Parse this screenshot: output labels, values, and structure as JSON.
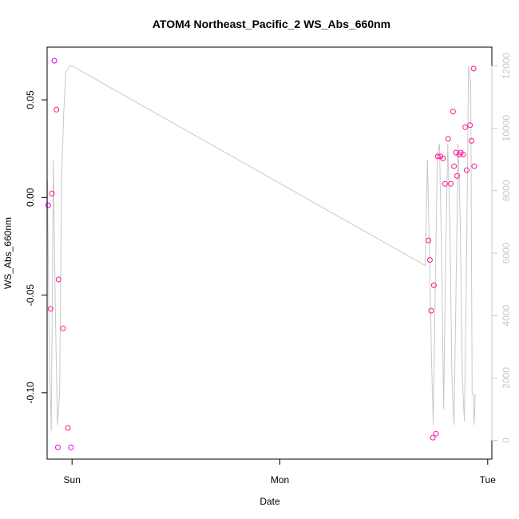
{
  "chart_data": {
    "type": "scatter",
    "title": "ATOM4 Northeast_Pacific_2 WS_Abs_660nm",
    "xlabel": "Date",
    "ylabel": "WS_Abs_660nm",
    "x_ticks": [
      "Sun",
      "Mon",
      "Tue"
    ],
    "y_ticks": [
      "-0.10",
      "-0.05",
      "0.00",
      "0.05"
    ],
    "y2_ticks": [
      "0",
      "2000",
      "4000",
      "6000",
      "8000",
      "10000",
      "12000"
    ],
    "xlim_days": [
      -0.12,
      2.02
    ],
    "ylim": [
      -0.134,
      0.077
    ],
    "y2lim": [
      -600,
      12600
    ],
    "colors": {
      "points": "#ff1493",
      "points_alt": "#e000e0",
      "altitude_line": "#c8c8c8"
    },
    "points": [
      {
        "x": -0.115,
        "y": -0.004
      },
      {
        "x": -0.103,
        "y": -0.057
      },
      {
        "x": -0.097,
        "y": 0.002
      },
      {
        "x": -0.085,
        "y": 0.07
      },
      {
        "x": -0.075,
        "y": 0.045
      },
      {
        "x": -0.065,
        "y": -0.042
      },
      {
        "x": -0.068,
        "y": -0.128
      },
      {
        "x": -0.043,
        "y": -0.067
      },
      {
        "x": -0.02,
        "y": -0.118
      },
      {
        "x": -0.005,
        "y": -0.128
      },
      {
        "x": 1.715,
        "y": -0.022
      },
      {
        "x": 1.722,
        "y": -0.032
      },
      {
        "x": 1.728,
        "y": -0.058
      },
      {
        "x": 1.736,
        "y": -0.123
      },
      {
        "x": 1.741,
        "y": -0.045
      },
      {
        "x": 1.751,
        "y": -0.121
      },
      {
        "x": 1.76,
        "y": 0.021
      },
      {
        "x": 1.773,
        "y": 0.021
      },
      {
        "x": 1.785,
        "y": 0.02
      },
      {
        "x": 1.795,
        "y": 0.007
      },
      {
        "x": 1.81,
        "y": 0.03
      },
      {
        "x": 1.822,
        "y": 0.007
      },
      {
        "x": 1.833,
        "y": 0.044
      },
      {
        "x": 1.838,
        "y": 0.016
      },
      {
        "x": 1.848,
        "y": 0.023
      },
      {
        "x": 1.853,
        "y": 0.011
      },
      {
        "x": 1.863,
        "y": 0.022
      },
      {
        "x": 1.871,
        "y": 0.023
      },
      {
        "x": 1.882,
        "y": 0.022
      },
      {
        "x": 1.892,
        "y": 0.036
      },
      {
        "x": 1.899,
        "y": 0.014
      },
      {
        "x": 1.915,
        "y": 0.037
      },
      {
        "x": 1.922,
        "y": 0.029
      },
      {
        "x": 1.932,
        "y": 0.066
      },
      {
        "x": 1.935,
        "y": 0.016
      }
    ],
    "altitude": [
      [
        -0.118,
        8300
      ],
      [
        -0.11,
        3000
      ],
      [
        -0.1,
        300
      ],
      [
        -0.09,
        9000
      ],
      [
        -0.08,
        4000
      ],
      [
        -0.07,
        500
      ],
      [
        -0.06,
        1500
      ],
      [
        -0.05,
        8500
      ],
      [
        -0.04,
        10500
      ],
      [
        -0.03,
        11800
      ],
      [
        -0.01,
        12000
      ],
      [
        0.0,
        12000
      ],
      [
        1.7,
        5600
      ],
      [
        1.71,
        9000
      ],
      [
        1.72,
        6000
      ],
      [
        1.73,
        2500
      ],
      [
        1.738,
        500
      ],
      [
        1.748,
        5000
      ],
      [
        1.758,
        9200
      ],
      [
        1.768,
        9500
      ],
      [
        1.778,
        6000
      ],
      [
        1.788,
        1000
      ],
      [
        1.798,
        6000
      ],
      [
        1.808,
        9500
      ],
      [
        1.818,
        7000
      ],
      [
        1.828,
        2000
      ],
      [
        1.838,
        500
      ],
      [
        1.848,
        5000
      ],
      [
        1.858,
        9500
      ],
      [
        1.868,
        7000
      ],
      [
        1.878,
        2000
      ],
      [
        1.888,
        600
      ],
      [
        1.898,
        5500
      ],
      [
        1.908,
        12000
      ],
      [
        1.918,
        11500
      ],
      [
        1.925,
        1500
      ],
      [
        1.93,
        1500
      ],
      [
        1.935,
        500
      ],
      [
        1.94,
        1500
      ]
    ]
  }
}
